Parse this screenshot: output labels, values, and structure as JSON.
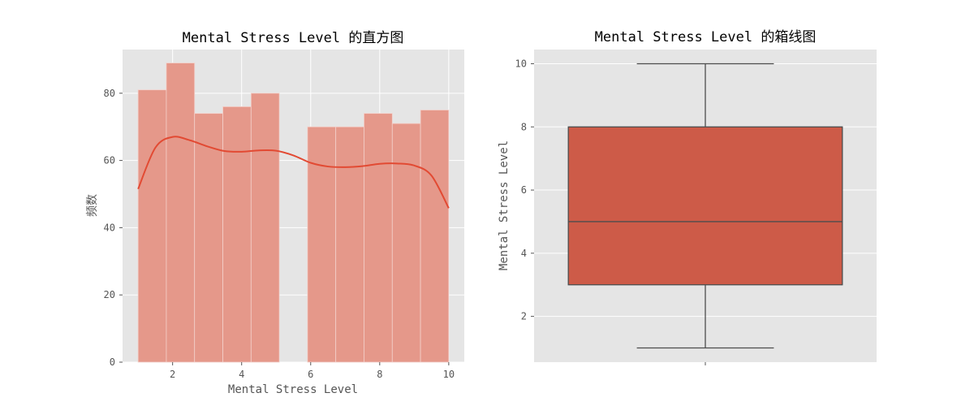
{
  "chart_data": [
    {
      "type": "bar",
      "title": "Mental Stress Level 的直方图",
      "xlabel": "Mental Stress Level",
      "ylabel": "频数",
      "xlim": [
        0.55,
        10.45
      ],
      "ylim": [
        0,
        93
      ],
      "grid": true,
      "bin_edges": [
        1.0,
        1.818,
        2.636,
        3.455,
        4.273,
        5.091,
        5.909,
        6.727,
        7.545,
        8.364,
        9.182,
        10.0
      ],
      "values": [
        81,
        89,
        74,
        76,
        80,
        0,
        70,
        70,
        74,
        71,
        75
      ],
      "kde": {
        "x": [
          1.0,
          1.5,
          2.0,
          2.5,
          3.0,
          3.5,
          4.0,
          4.5,
          5.0,
          5.5,
          6.0,
          6.5,
          7.0,
          7.5,
          8.0,
          8.5,
          9.0,
          9.5,
          10.0
        ],
        "y": [
          51.5,
          63.8,
          67.0,
          66.0,
          64.2,
          62.8,
          62.6,
          63.0,
          62.9,
          61.5,
          59.3,
          58.2,
          58.0,
          58.3,
          59.0,
          59.1,
          58.5,
          55.5,
          45.8
        ]
      },
      "xticks": [
        2,
        4,
        6,
        8,
        10
      ],
      "yticks": [
        0,
        20,
        40,
        60,
        80
      ],
      "colors": {
        "bar": "#e5988a",
        "kde": "#e24a33",
        "background": "#e5e5e5",
        "grid": "#ffffff"
      }
    },
    {
      "type": "box",
      "title": "Mental Stress Level 的箱线图",
      "ylabel": "Mental Stress Level",
      "ylim": [
        0.55,
        10.45
      ],
      "grid": true,
      "stats": {
        "min": 1,
        "q1": 3,
        "median": 5,
        "q3": 8,
        "max": 10
      },
      "yticks": [
        2,
        4,
        6,
        8,
        10
      ],
      "colors": {
        "box": "#cd5b48",
        "line": "#4d4d4d",
        "background": "#e5e5e5",
        "grid": "#ffffff"
      }
    }
  ]
}
